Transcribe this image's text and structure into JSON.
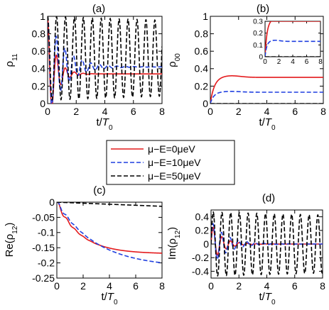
{
  "legend": [
    {
      "label": "μ−E=0μeV",
      "color": "#e41a1c",
      "dash": "solid"
    },
    {
      "label": "μ−E=10μeV",
      "color": "#1f3fe0",
      "dash": "dashed"
    },
    {
      "label": "μ−E=50μeV",
      "color": "#000000",
      "dash": "dashed"
    }
  ],
  "chart_data": [
    {
      "panel": "(a)",
      "type": "line",
      "ylabel": "ρ11",
      "xlabel": "t/T0",
      "xlim": [
        0,
        8
      ],
      "ylim": [
        0,
        1
      ],
      "xticks": [
        0,
        2,
        4,
        6,
        8
      ],
      "yticks": [
        0,
        0.2,
        0.4,
        0.6,
        0.8,
        1
      ],
      "ytick_labels": [
        "0",
        "0.2",
        "0.4",
        "0.6",
        "0.8",
        "1"
      ],
      "series": [
        {
          "name": "μ−E=0μeV",
          "model": "damped_cos",
          "params": {
            "A": 0.34,
            "B": 0.66,
            "tau": 0.55,
            "f": 1.6
          },
          "x_end": 8
        },
        {
          "name": "μ−E=10μeV",
          "model": "damped_cos",
          "params": {
            "A": 0.42,
            "B": 0.58,
            "tau": 1.2,
            "f": 1.65
          },
          "x_end": 8
        },
        {
          "name": "μ−E=50μeV",
          "model": "damped_cos",
          "params": {
            "A": 0.52,
            "B": 0.48,
            "tau": 80,
            "f": 1.6
          },
          "x_end": 8
        }
      ]
    },
    {
      "panel": "(b)",
      "type": "line",
      "ylabel": "ρ00",
      "xlabel": "t/T0",
      "xlim": [
        0,
        8
      ],
      "ylim": [
        0,
        1
      ],
      "xticks": [
        0,
        2,
        4,
        6,
        8
      ],
      "yticks": [
        0,
        0.2,
        0.4,
        0.6,
        0.8,
        1
      ],
      "ytick_labels": [
        "0",
        "0.2",
        "0.4",
        "0.6",
        "0.8",
        "1"
      ],
      "series": [
        {
          "name": "μ−E=0μeV",
          "model": "rise",
          "params": {
            "A": 0.3,
            "k": 3.5,
            "overshoot": 0.02
          },
          "x_end": 8
        },
        {
          "name": "μ−E=10μeV",
          "model": "rise",
          "params": {
            "A": 0.13,
            "k": 4.0,
            "overshoot": 0.01
          },
          "x_end": 8
        },
        {
          "name": "μ−E=50μeV",
          "model": "rise",
          "params": {
            "A": 0.0,
            "k": 1.0,
            "overshoot": 0.0
          },
          "x_end": 8
        }
      ],
      "inset": {
        "xlim": [
          0,
          8
        ],
        "ylim": [
          0,
          0.3
        ],
        "xticks": [
          0,
          2,
          4,
          6,
          8
        ],
        "yticks": [
          0,
          0.1,
          0.2,
          0.3
        ],
        "ytick_labels": [
          "0",
          "0.1",
          "0.2",
          "0.3"
        ]
      }
    },
    {
      "panel": "(c)",
      "type": "line",
      "ylabel": "Re(ρ12)",
      "xlabel": "t/T0",
      "xlim": [
        0,
        8
      ],
      "ylim": [
        -0.25,
        0
      ],
      "xticks": [
        0,
        2,
        4,
        6,
        8
      ],
      "yticks": [
        0,
        -0.05,
        -0.1,
        -0.15,
        -0.2,
        -0.25
      ],
      "ytick_labels": [
        "0",
        "-0.05",
        "-0.1",
        "-0.15",
        "-0.2",
        "-0.25"
      ],
      "series": [
        {
          "name": "μ−E=0μeV",
          "model": "decay_line",
          "params": {
            "A": -0.17,
            "k": 0.55,
            "wiggle": 0.01
          },
          "x_end": 8
        },
        {
          "name": "μ−E=10μeV",
          "model": "decay_line",
          "params": {
            "A": -0.215,
            "k": 0.33,
            "wiggle": 0.008
          },
          "x_end": 8
        },
        {
          "name": "μ−E=50μeV",
          "model": "linear",
          "params": {
            "slope": -0.0017
          },
          "x_end": 8
        }
      ]
    },
    {
      "panel": "(d)",
      "type": "line",
      "ylabel": "Im(ρ12)",
      "xlabel": "t/T0",
      "xlim": [
        0,
        8
      ],
      "ylim": [
        -0.5,
        0.5
      ],
      "xticks": [
        0,
        2,
        4,
        6,
        8
      ],
      "yticks": [
        0.4,
        0.2,
        0,
        -0.2,
        -0.4
      ],
      "ytick_labels": [
        "0.4",
        "0.2",
        "0",
        "-0.2",
        "-0.4"
      ],
      "series": [
        {
          "name": "μ−E=0μeV",
          "model": "damped_sin",
          "params": {
            "A": 0.0,
            "B": 0.3,
            "tau": 0.75,
            "f": 1.6
          },
          "x_end": 8
        },
        {
          "name": "μ−E=10μeV",
          "model": "damped_sin",
          "params": {
            "A": 0.0,
            "B": 0.34,
            "tau": 1.1,
            "f": 1.65
          },
          "x_end": 8
        },
        {
          "name": "μ−E=50μeV",
          "model": "damped_sin",
          "params": {
            "A": 0.0,
            "B": 0.47,
            "tau": 80,
            "f": 1.6
          },
          "x_end": 8
        }
      ]
    }
  ]
}
